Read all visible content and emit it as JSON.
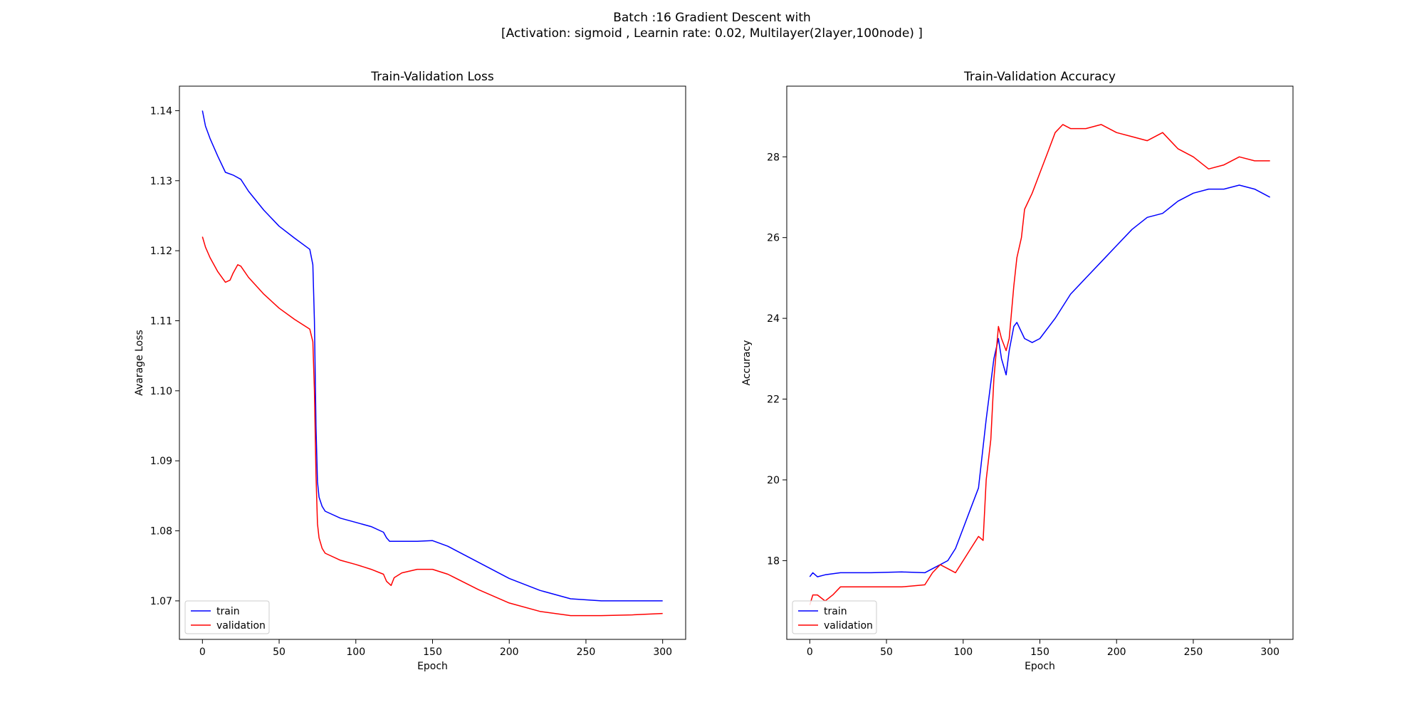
{
  "figure": {
    "suptitle_line1": "Batch :16 Gradient Descent with",
    "suptitle_line2": "[Activation: sigmoid , Learnin rate: 0.02, Multilayer(2layer,100node) ]"
  },
  "colors": {
    "train": "#0000ff",
    "validation": "#ff0000"
  },
  "chart_data": [
    {
      "type": "line",
      "title": "Train-Validation Loss",
      "xlabel": "Epoch",
      "ylabel": "Avarage Loss",
      "xlim": [
        -15,
        315
      ],
      "ylim": [
        1.0645,
        1.1435
      ],
      "xticks": [
        0,
        50,
        100,
        150,
        200,
        250,
        300
      ],
      "yticks": [
        1.07,
        1.08,
        1.09,
        1.1,
        1.11,
        1.12,
        1.13,
        1.14
      ],
      "ytick_labels": [
        "1.07",
        "1.08",
        "1.09",
        "1.10",
        "1.11",
        "1.12",
        "1.13",
        "1.14"
      ],
      "legend": "lower-left",
      "grid": false,
      "series": [
        {
          "name": "train",
          "color": "#0000ff",
          "x": [
            0,
            2,
            5,
            10,
            15,
            20,
            25,
            30,
            40,
            50,
            60,
            70,
            72,
            73,
            74,
            75,
            76,
            78,
            80,
            90,
            100,
            110,
            118,
            120,
            122,
            125,
            130,
            140,
            150,
            160,
            180,
            200,
            220,
            240,
            260,
            280,
            300
          ],
          "y": [
            1.14,
            1.1378,
            1.136,
            1.1335,
            1.1312,
            1.1308,
            1.1302,
            1.1285,
            1.1258,
            1.1235,
            1.1218,
            1.1202,
            1.118,
            1.11,
            1.095,
            1.087,
            1.0848,
            1.0835,
            1.0828,
            1.0818,
            1.0812,
            1.0806,
            1.0798,
            1.079,
            1.0785,
            1.0785,
            1.0785,
            1.0785,
            1.0786,
            1.0778,
            1.0755,
            1.0732,
            1.0715,
            1.0703,
            1.07,
            1.07,
            1.07
          ]
        },
        {
          "name": "validation",
          "color": "#ff0000",
          "x": [
            0,
            2,
            5,
            10,
            15,
            18,
            20,
            23,
            25,
            30,
            40,
            50,
            60,
            70,
            72,
            73,
            74,
            75,
            76,
            78,
            80,
            90,
            100,
            110,
            118,
            120,
            123,
            125,
            130,
            140,
            150,
            160,
            180,
            200,
            220,
            240,
            260,
            280,
            300
          ],
          "y": [
            1.122,
            1.1205,
            1.119,
            1.117,
            1.1155,
            1.1158,
            1.1168,
            1.118,
            1.1178,
            1.1162,
            1.1138,
            1.1118,
            1.1102,
            1.1088,
            1.107,
            1.1,
            1.088,
            1.081,
            1.079,
            1.0775,
            1.0768,
            1.0758,
            1.0752,
            1.0745,
            1.0738,
            1.0728,
            1.0722,
            1.0733,
            1.074,
            1.0745,
            1.0745,
            1.0738,
            1.0716,
            1.0697,
            1.0685,
            1.0679,
            1.0679,
            1.068,
            1.0682
          ]
        }
      ]
    },
    {
      "type": "line",
      "title": "Train-Validation Accuracy",
      "xlabel": "Epoch",
      "ylabel": "Accuracy",
      "xlim": [
        -15,
        315
      ],
      "ylim": [
        16.05,
        29.75
      ],
      "xticks": [
        0,
        50,
        100,
        150,
        200,
        250,
        300
      ],
      "yticks": [
        18,
        20,
        22,
        24,
        26,
        28
      ],
      "ytick_labels": [
        "18",
        "20",
        "22",
        "24",
        "26",
        "28"
      ],
      "legend": "lower-left",
      "grid": false,
      "series": [
        {
          "name": "train",
          "color": "#0000ff",
          "x": [
            0,
            2,
            5,
            10,
            20,
            40,
            60,
            75,
            80,
            85,
            90,
            95,
            100,
            105,
            110,
            115,
            120,
            123,
            125,
            128,
            130,
            133,
            135,
            140,
            145,
            150,
            160,
            170,
            180,
            190,
            200,
            210,
            220,
            230,
            240,
            250,
            260,
            270,
            280,
            290,
            300
          ],
          "y": [
            17.6,
            17.7,
            17.6,
            17.65,
            17.7,
            17.7,
            17.72,
            17.7,
            17.8,
            17.9,
            18.0,
            18.3,
            18.8,
            19.3,
            19.8,
            21.5,
            23.0,
            23.5,
            23.0,
            22.6,
            23.2,
            23.8,
            23.9,
            23.5,
            23.4,
            23.5,
            24.0,
            24.6,
            25.0,
            25.4,
            25.8,
            26.2,
            26.5,
            26.6,
            26.9,
            27.1,
            27.2,
            27.2,
            27.3,
            27.2,
            27.0
          ]
        },
        {
          "name": "validation",
          "color": "#ff0000",
          "x": [
            0,
            2,
            5,
            10,
            15,
            20,
            40,
            60,
            75,
            80,
            85,
            90,
            95,
            100,
            105,
            110,
            113,
            115,
            118,
            120,
            123,
            125,
            128,
            130,
            133,
            135,
            138,
            140,
            145,
            150,
            155,
            160,
            165,
            170,
            180,
            190,
            200,
            210,
            220,
            230,
            240,
            250,
            260,
            270,
            280,
            290,
            300
          ],
          "y": [
            16.9,
            17.15,
            17.15,
            17.0,
            17.15,
            17.35,
            17.35,
            17.35,
            17.4,
            17.7,
            17.9,
            17.8,
            17.7,
            18.0,
            18.3,
            18.6,
            18.5,
            20.0,
            21.0,
            22.5,
            23.8,
            23.5,
            23.2,
            23.5,
            24.8,
            25.5,
            26.0,
            26.7,
            27.1,
            27.6,
            28.1,
            28.6,
            28.8,
            28.7,
            28.7,
            28.8,
            28.6,
            28.5,
            28.4,
            28.6,
            28.2,
            28.0,
            27.7,
            27.8,
            28.0,
            27.9,
            27.9
          ]
        }
      ]
    }
  ]
}
